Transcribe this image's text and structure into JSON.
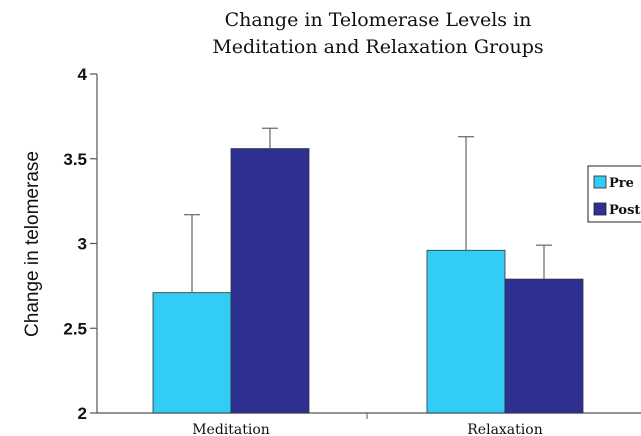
{
  "chart_data": {
    "type": "bar",
    "title_lines": [
      "Change in Telomerase Levels in",
      "Meditation and Relaxation Groups"
    ],
    "xlabel": "",
    "ylabel": "Change in telomerase",
    "categories": [
      "Meditation",
      "Relaxation"
    ],
    "series": [
      {
        "name": "Pre",
        "color": "#33ccf5",
        "values": [
          2.71,
          2.96
        ],
        "error_upper": [
          3.17,
          3.63
        ]
      },
      {
        "name": "Post",
        "color": "#2e3192",
        "values": [
          3.56,
          2.79
        ],
        "error_upper": [
          3.68,
          2.99
        ]
      }
    ],
    "ylim": [
      2,
      4
    ],
    "yticks": [
      "2",
      "2.5",
      "3",
      "3.5",
      "4"
    ],
    "grid": false,
    "legend_position": "right"
  }
}
